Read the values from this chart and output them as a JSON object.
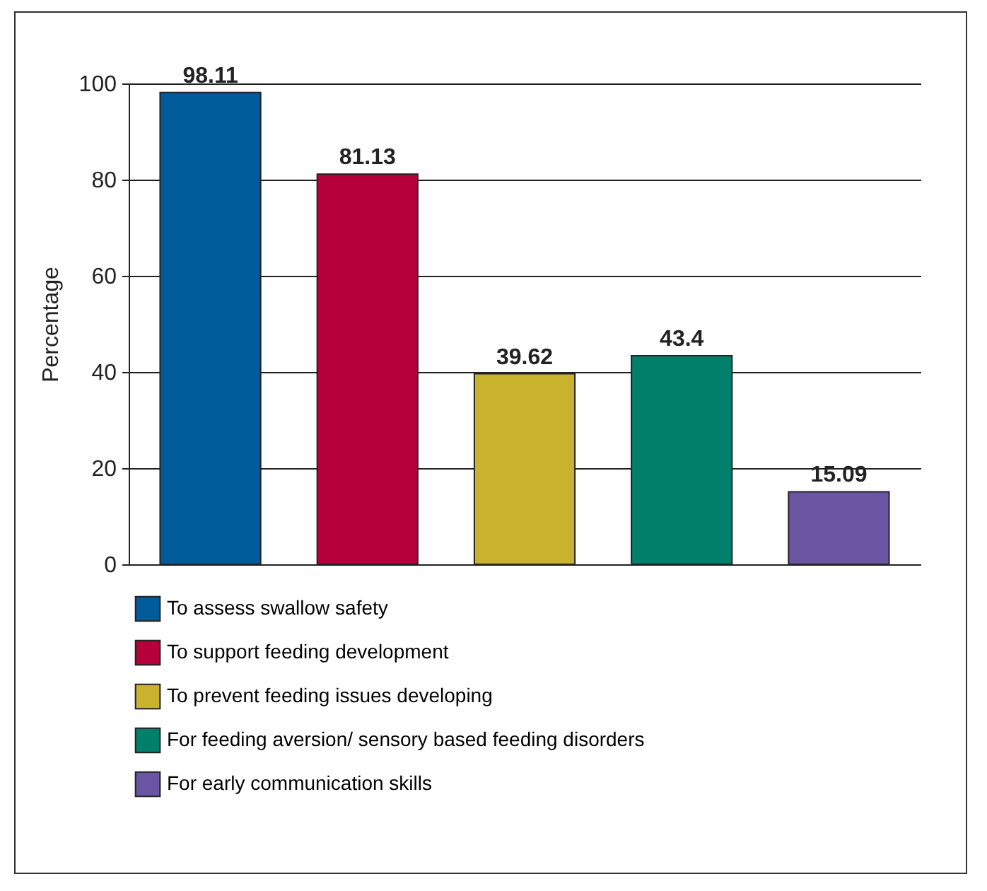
{
  "chart_data": {
    "type": "bar",
    "categories": [
      null,
      null,
      null,
      null,
      null
    ],
    "series": [
      {
        "name": "To assess swallow safety",
        "color": "#005b9a",
        "values": [
          98.11,
          null,
          null,
          null,
          null
        ]
      },
      {
        "name": "To support feeding development",
        "color": "#b5003b",
        "values": [
          null,
          81.13,
          null,
          null,
          null
        ]
      },
      {
        "name": "To prevent feeding issues developing",
        "color": "#c9b22e",
        "values": [
          null,
          null,
          39.62,
          null,
          null
        ]
      },
      {
        "name": "For feeding aversion/ sensory based feeding disorders",
        "color": "#00806a",
        "values": [
          null,
          null,
          null,
          43.4,
          null
        ]
      },
      {
        "name": "For early communication skills",
        "color": "#6a55a3",
        "values": [
          null,
          null,
          null,
          null,
          15.09
        ]
      }
    ],
    "ylabel": "Percentage",
    "ylim": [
      0,
      100
    ],
    "yticks": [
      0,
      20,
      40,
      60,
      80,
      100
    ],
    "grid": "y",
    "legend": "bottom",
    "data_labels": true,
    "tick_labels": "y"
  }
}
